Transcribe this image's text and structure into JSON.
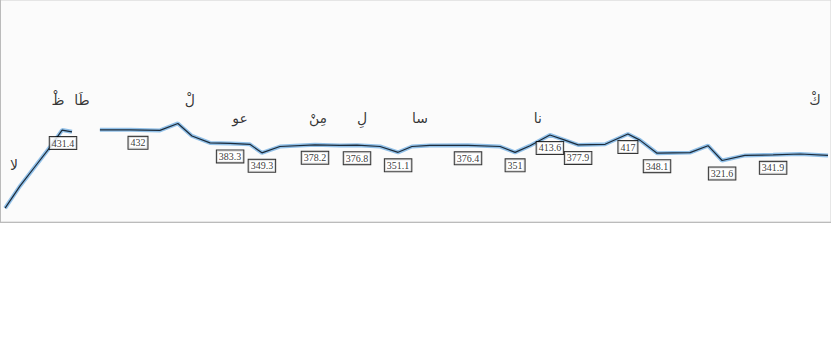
{
  "chart_data": {
    "type": "line",
    "color": "#3b8fd9",
    "xlim": [
      0,
      2.77
    ],
    "ylim": [
      100,
      900
    ],
    "grid": false,
    "tick_labels": false,
    "x": [
      0.017,
      0.067,
      0.117,
      0.167,
      0.207,
      0.24,
      0.29,
      0.333,
      0.433,
      0.533,
      0.593,
      0.64,
      0.7,
      0.767,
      0.833,
      0.873,
      0.933,
      1.05,
      1.133,
      1.19,
      1.267,
      1.327,
      1.373,
      1.433,
      1.56,
      1.667,
      1.717,
      1.767,
      1.833,
      1.883,
      1.927,
      2.017,
      2.093,
      2.133,
      2.19,
      2.3,
      2.36,
      2.407,
      2.483,
      2.577,
      2.667,
      2.76
    ],
    "values": [
      150,
      230,
      300,
      370,
      431.4,
      425,
      null,
      432,
      432,
      430,
      455,
      410,
      385,
      383.3,
      380,
      349.3,
      372,
      378.2,
      376,
      376.8,
      372,
      351.1,
      372,
      376,
      376.4,
      372,
      351,
      375,
      413.6,
      395,
      377.9,
      380,
      417,
      395,
      348.1,
      350,
      375,
      321.6,
      340,
      341.9,
      345,
      340
    ],
    "labeled_points": {
      "x": [
        0.21,
        0.46,
        0.767,
        0.873,
        1.05,
        1.19,
        1.327,
        1.56,
        1.717,
        1.833,
        1.927,
        2.093,
        2.19,
        2.407,
        2.577
      ],
      "values": [
        431.4,
        432,
        383.3,
        349.3,
        378.2,
        376.8,
        351.1,
        376.4,
        351,
        413.6,
        377.9,
        417,
        348.1,
        321.6,
        341.9
      ]
    },
    "syllables": [
      {
        "text": "لا",
        "x": 0.047,
        "y": 306
      },
      {
        "text": "ظْ",
        "x": 0.193,
        "y": 540
      },
      {
        "text": "طَا",
        "x": 0.273,
        "y": 540
      },
      {
        "text": "لْ",
        "x": 0.633,
        "y": 540
      },
      {
        "text": "عو",
        "x": 0.8,
        "y": 475
      },
      {
        "text": "مِنْ",
        "x": 1.06,
        "y": 475
      },
      {
        "text": "لِ",
        "x": 1.207,
        "y": 475
      },
      {
        "text": "سا",
        "x": 1.4,
        "y": 475
      },
      {
        "text": "نا",
        "x": 1.793,
        "y": 475
      },
      {
        "text": "كْ",
        "x": 2.717,
        "y": 540
      }
    ]
  }
}
